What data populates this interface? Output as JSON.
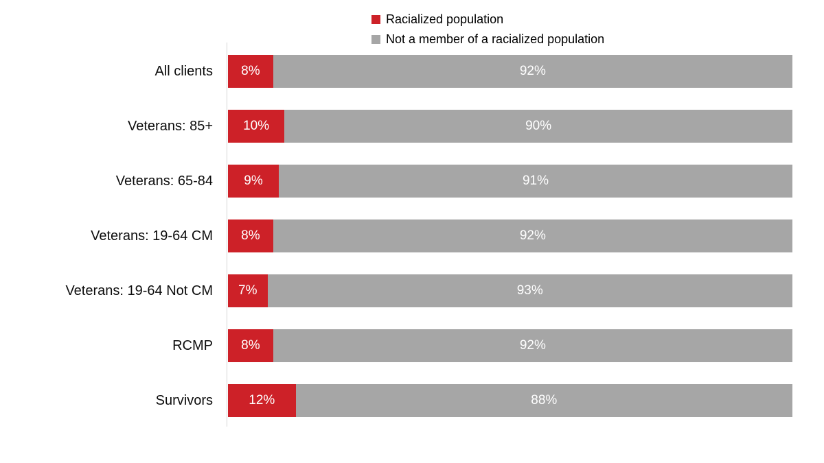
{
  "chart_data": {
    "type": "bar",
    "orientation": "horizontal",
    "stacked": true,
    "title": "",
    "xlabel": "",
    "ylabel": "",
    "xlim": [
      0,
      100
    ],
    "grid": false,
    "legend_position": "top-center",
    "data_labels": "inside-center-white-percent",
    "categories": [
      "All clients",
      "Veterans: 85+",
      "Veterans: 65-84",
      "Veterans: 19-64 CM",
      "Veterans: 19-64 Not CM",
      "RCMP",
      "Survivors"
    ],
    "series": [
      {
        "name": "Racialized population",
        "color": "#cd2128",
        "values": [
          8,
          10,
          9,
          8,
          7,
          8,
          12
        ],
        "labels": [
          "8%",
          "10%",
          "9%",
          "8%",
          "7%",
          "8%",
          "12%"
        ]
      },
      {
        "name": "Not a member of a racialized population",
        "color": "#a6a6a6",
        "values": [
          92,
          90,
          91,
          92,
          93,
          92,
          88
        ],
        "labels": [
          "92%",
          "90%",
          "91%",
          "92%",
          "93%",
          "92%",
          "88%"
        ]
      }
    ]
  },
  "colors": {
    "background": "#ffffff",
    "axis_line": "#d6d6d6",
    "label_text": "#0d0d0d",
    "data_label_text": "#ffffff"
  }
}
